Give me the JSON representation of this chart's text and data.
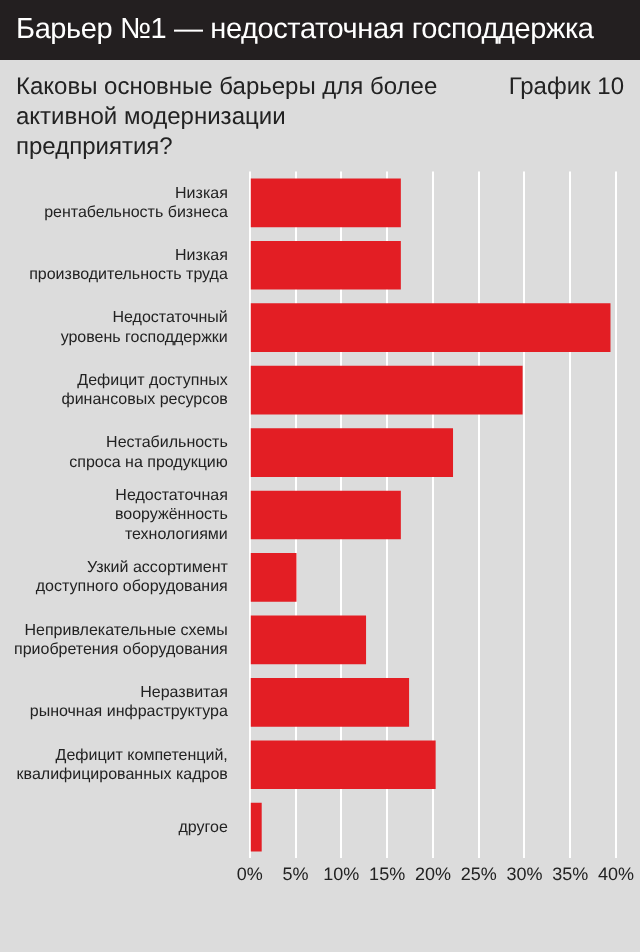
{
  "chart_data": {
    "type": "bar",
    "orientation": "horizontal",
    "title": "Барьер №1 — недостаточная господдержка",
    "subtitle": "Каковы основные барьеры для более активной модернизации предприятия?",
    "annotations": [
      "График 10"
    ],
    "categories": [
      "Низкая\nрентабельность бизнеса",
      "Низкая\nпроизводительность труда",
      "Недостаточный\nуровень господдержки",
      "Дефицит доступных\nфинансовых ресурсов",
      "Нестабильность\nспроса на продукцию",
      "Недостаточная\nвооружённость\nтехнологиями",
      "Узкий ассортимент\nдоступного оборудования",
      "Непривлекательные схемы\nприобретения оборудования",
      "Неразвитая\nрыночная инфраструктура",
      "Дефицит компетенций,\nквалифицированных кадров",
      "другое"
    ],
    "values": [
      16.5,
      16.5,
      39.4,
      29.8,
      22.2,
      16.5,
      5.1,
      12.7,
      17.4,
      20.3,
      1.3
    ],
    "color": "#e31e24",
    "xlim": [
      0,
      40
    ],
    "xticks": [
      {
        "value": 0,
        "label": "0%"
      },
      {
        "value": 5,
        "label": "5%"
      },
      {
        "value": 10,
        "label": "10%"
      },
      {
        "value": 15,
        "label": "15%"
      },
      {
        "value": 20,
        "label": "20%"
      },
      {
        "value": 25,
        "label": "25%"
      },
      {
        "value": 30,
        "label": "30%"
      },
      {
        "value": 35,
        "label": "35%"
      },
      {
        "value": 40,
        "label": "40%"
      }
    ],
    "grid": "x"
  }
}
